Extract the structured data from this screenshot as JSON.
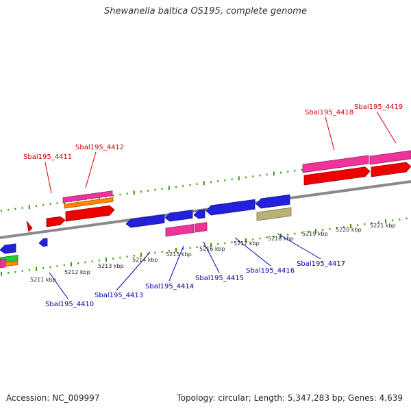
{
  "title": "Shewanella baltica OS195, complete genome",
  "footer": {
    "accession": "Accession: NC_009997",
    "summary": "Topology: circular; Length: 5,347,283 bp; Genes: 4,639"
  },
  "colors": {
    "backbone": "#8a8a8a",
    "tick": "#339900",
    "plus_label": "#cc0000",
    "minus_label": "#0000aa",
    "red": "#ee0000",
    "magenta": "#ee3399",
    "blue": "#2222dd",
    "orange": "#ff8800",
    "green": "#22cc33",
    "khaki": "#bbb077"
  },
  "kbp_ticks": [
    "5211 kbp",
    "5212 kbp",
    "5213 kbp",
    "5214 kbp",
    "5215 kbp",
    "5216 kbp",
    "5217 kbp",
    "5218 kbp",
    "5219 kbp",
    "5220 kbp",
    "5221 kbp"
  ],
  "plus_labels": [
    "Sbal195_4411",
    "Sbal195_4412",
    "Sbal195_4418",
    "Sbal195_4419"
  ],
  "minus_labels": [
    "Sbal195_4410",
    "Sbal195_4413",
    "Sbal195_4414",
    "Sbal195_4415",
    "Sbal195_4416",
    "Sbal195_4417"
  ]
}
